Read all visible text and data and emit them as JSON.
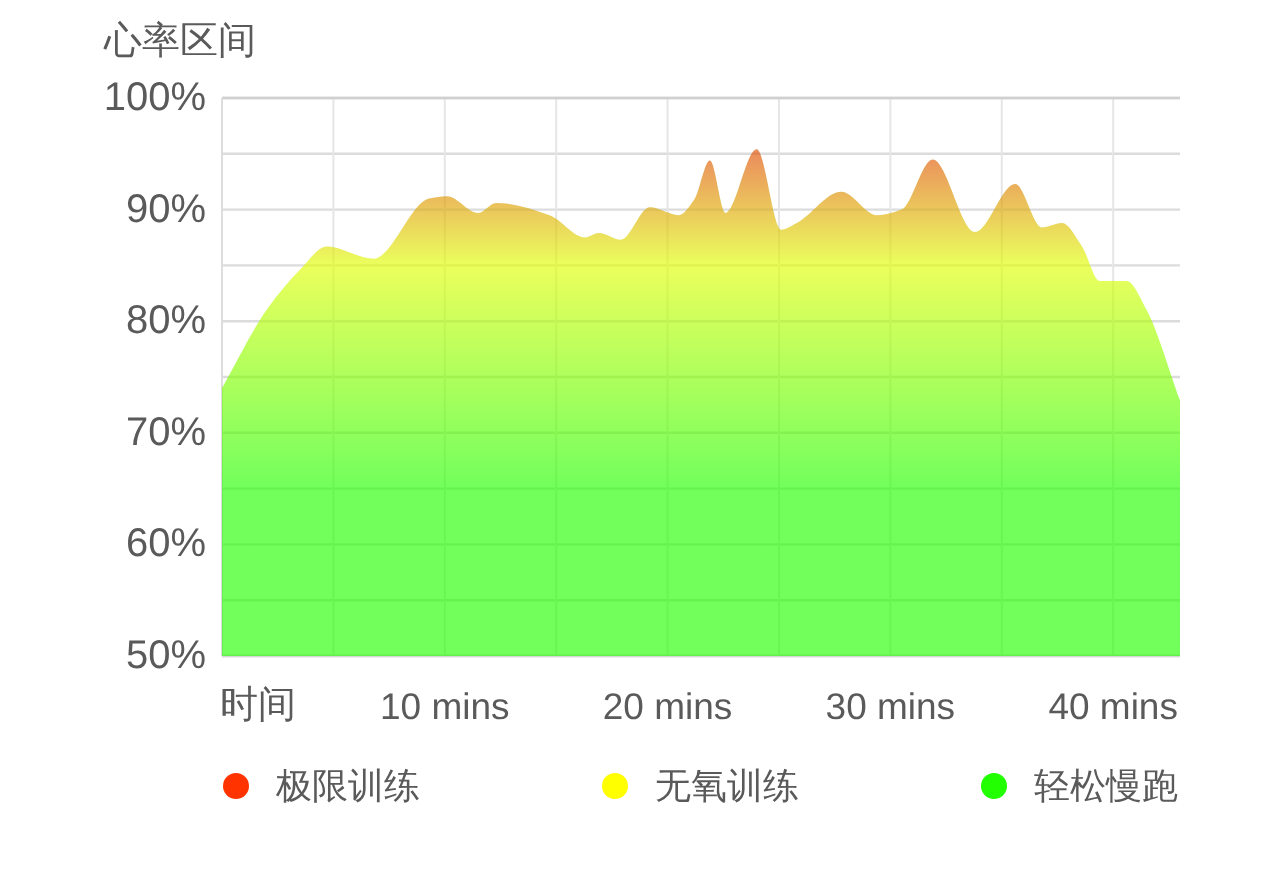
{
  "chart_data": {
    "type": "area",
    "xlabel": "时间",
    "ylabel": "心率区间",
    "x": [
      0,
      2.0,
      3.5,
      4.7,
      6.8,
      9.3,
      10.1,
      11.5,
      12.3,
      14.7,
      16.3,
      16.9,
      17.9,
      19.2,
      20.5,
      21.2,
      21.9,
      22.6,
      24.0,
      25.1,
      25.8,
      27.8,
      29.4,
      30.5,
      31.9,
      33.8,
      35.6,
      36.8,
      37.7,
      38.6,
      39.4,
      40.6,
      41.5,
      43.0
    ],
    "series": [
      {
        "color": "#22ff00",
        "values": [
          74.0,
          81.0,
          84.6,
          86.7,
          85.6,
          91.0,
          91.2,
          89.7,
          90.6,
          89.5,
          87.5,
          87.9,
          87.3,
          90.2,
          89.5,
          90.9,
          94.4,
          89.7,
          95.4,
          88.2,
          88.8,
          91.6,
          89.5,
          90.0,
          94.5,
          88.0,
          92.3,
          88.4,
          88.8,
          86.7,
          83.6,
          83.6,
          81.0,
          72.9
        ]
      }
    ],
    "bands": [
      {
        "axis": "y",
        "from": 90,
        "to": 100,
        "label": "极限训练",
        "color": "#ff3300"
      },
      {
        "axis": "y",
        "from": 80,
        "to": 90,
        "label": "无氧训练",
        "color": "#ffff00"
      },
      {
        "axis": "y",
        "from": 50,
        "to": 80,
        "label": "轻松慢跑",
        "color": "#22ff00"
      }
    ],
    "xlim": [
      0,
      43
    ],
    "xticks": [
      {
        "value": 5,
        "label": null
      },
      {
        "value": 10,
        "label": "10 mins"
      },
      {
        "value": 15,
        "label": null
      },
      {
        "value": 20,
        "label": "20 mins"
      },
      {
        "value": 25,
        "label": null
      },
      {
        "value": 30,
        "label": "30 mins"
      },
      {
        "value": 35,
        "label": null
      },
      {
        "value": 40,
        "label": "40 mins"
      }
    ],
    "ylim": [
      50,
      100
    ],
    "yticks": [
      {
        "value": 50,
        "label": "50%"
      },
      {
        "value": 55,
        "label": null
      },
      {
        "value": 60,
        "label": "60%"
      },
      {
        "value": 65,
        "label": null
      },
      {
        "value": 70,
        "label": "70%"
      },
      {
        "value": 75,
        "label": null
      },
      {
        "value": 80,
        "label": "80%"
      },
      {
        "value": 85,
        "label": null
      },
      {
        "value": 90,
        "label": "90%"
      },
      {
        "value": 95,
        "label": null
      },
      {
        "value": 100,
        "label": "100%"
      }
    ],
    "grid": true,
    "legend": "bottom"
  }
}
